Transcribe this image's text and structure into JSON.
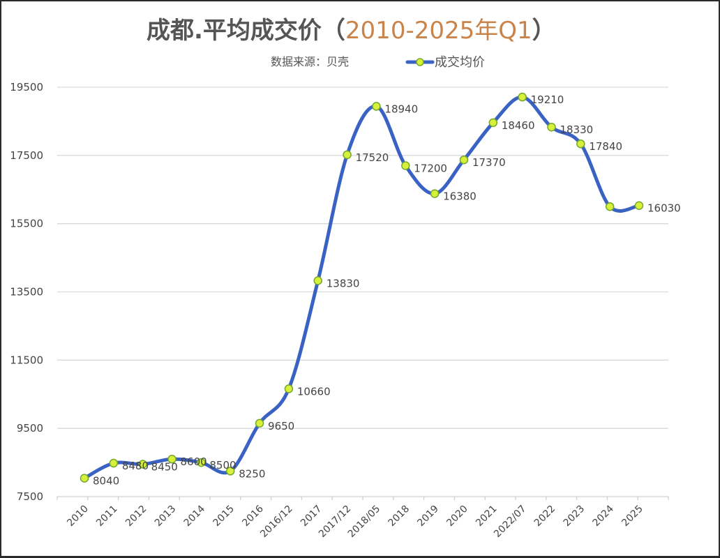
{
  "header": {
    "title_main": "成都.平均成交价（",
    "title_accent": "2010-2025年Q1",
    "title_close": "）",
    "source": "数据来源：贝壳",
    "legend_label": "成交均价"
  },
  "colors": {
    "line": "#3a62c4",
    "marker_fill": "#d6f03c",
    "marker_stroke": "#74a82a",
    "title_accent": "#c8844a",
    "grid": "#d9d9d9",
    "text": "#444444"
  },
  "chart_data": {
    "type": "line",
    "title": "成都.平均成交价（2010-2025年Q1）",
    "subtitle": "数据来源：贝壳",
    "xlabel": "",
    "ylabel": "",
    "ylim": [
      7500,
      19500
    ],
    "yticks": [
      7500,
      9500,
      11500,
      13500,
      15500,
      17500,
      19500
    ],
    "grid": true,
    "legend_position": "top",
    "smooth": true,
    "categories": [
      "2010",
      "2011",
      "2012",
      "2013",
      "2014",
      "2015",
      "2016",
      "2016/12",
      "2017",
      "2017/12",
      "2018/05",
      "2018",
      "2019",
      "2020",
      "2021",
      "2022/07",
      "2022",
      "2023",
      "2024",
      "2025"
    ],
    "series": [
      {
        "name": "成交均价",
        "values": [
          8040,
          8480,
          8450,
          8600,
          8500,
          8250,
          9650,
          10660,
          13830,
          17520,
          18940,
          17200,
          16380,
          17370,
          18460,
          19210,
          18330,
          17840,
          16000,
          16030
        ],
        "labels": [
          "8040",
          "8480",
          "8450",
          "8600",
          "8500",
          "8250",
          "9650",
          "10660",
          "13830",
          "17520",
          "18940",
          "17200",
          "16380",
          "17370",
          "18460",
          "19210",
          "18330",
          "17840",
          "",
          "16030"
        ]
      }
    ]
  }
}
